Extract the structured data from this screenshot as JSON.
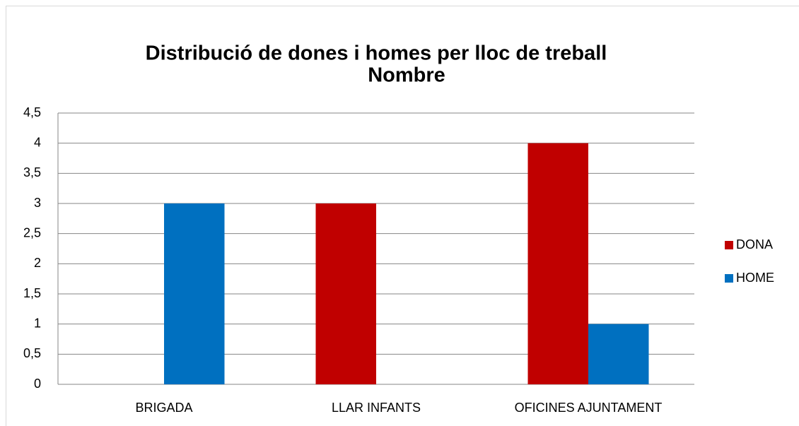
{
  "chart_data": {
    "type": "bar",
    "title": "Distribució de dones i homes per lloc de treball",
    "subtitle": "Nombre",
    "categories": [
      "BRIGADA",
      "LLAR INFANTS",
      "OFICINES AJUNTAMENT"
    ],
    "series": [
      {
        "name": "DONA",
        "color": "#c00000",
        "values": [
          0,
          3,
          4
        ]
      },
      {
        "name": "HOME",
        "color": "#0070c0",
        "values": [
          3,
          0,
          1
        ]
      }
    ],
    "ylim": [
      0,
      4.5
    ],
    "yticks": [
      0,
      {
        "value": 0.5,
        "label": "0,5"
      },
      1,
      {
        "value": 1.5,
        "label": "1,5"
      },
      2,
      {
        "value": 2.5,
        "label": "2,5"
      },
      3,
      {
        "value": 3.5,
        "label": "3,5"
      },
      4,
      {
        "value": 4.5,
        "label": "4,5"
      }
    ],
    "grid": true,
    "legend": "right"
  }
}
